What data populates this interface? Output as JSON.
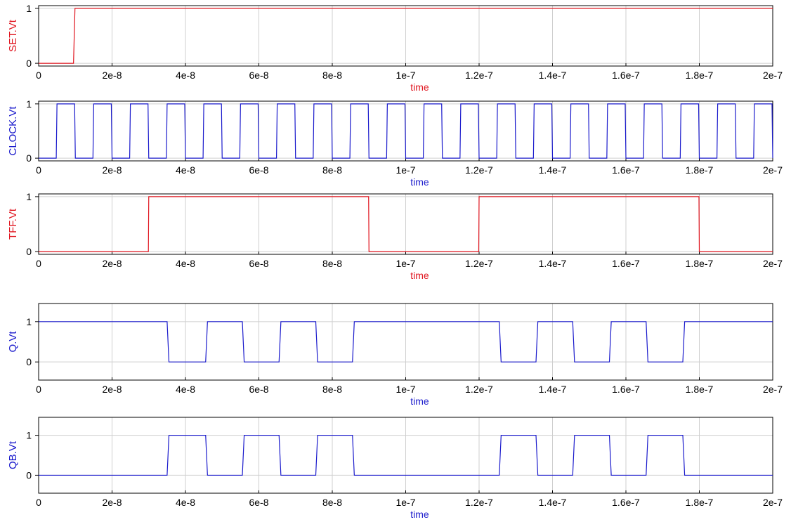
{
  "chart_data": [
    {
      "type": "line",
      "title": "",
      "xlabel": "time",
      "ylabel": "SET.Vt",
      "color": "#e0141e",
      "xlim": [
        0,
        2e-07
      ],
      "ylim": [
        -0.05,
        1.05
      ],
      "x_ticks": [
        {
          "v": 0,
          "label": "0"
        },
        {
          "v": 2e-08,
          "label": "2e-8"
        },
        {
          "v": 4e-08,
          "label": "4e-8"
        },
        {
          "v": 6e-08,
          "label": "6e-8"
        },
        {
          "v": 8e-08,
          "label": "8e-8"
        },
        {
          "v": 1e-07,
          "label": "1e-7"
        },
        {
          "v": 1.2e-07,
          "label": "1.2e-7"
        },
        {
          "v": 1.4e-07,
          "label": "1.4e-7"
        },
        {
          "v": 1.6e-07,
          "label": "1.6e-7"
        },
        {
          "v": 1.8e-07,
          "label": "1.8e-7"
        },
        {
          "v": 2e-07,
          "label": "2e-7"
        }
      ],
      "y_ticks": [
        {
          "v": 0,
          "label": "0"
        },
        {
          "v": 1,
          "label": "1"
        }
      ],
      "grid": true,
      "series": [
        {
          "x": [
            0,
            9.5e-09,
            9.9e-09,
            2e-07
          ],
          "y": [
            0,
            0,
            1,
            1
          ]
        }
      ]
    },
    {
      "type": "line",
      "title": "",
      "xlabel": "time",
      "ylabel": "CLOCK.Vt",
      "color": "#1a1acc",
      "xlim": [
        0,
        2e-07
      ],
      "ylim": [
        -0.05,
        1.05
      ],
      "x_ticks": [
        {
          "v": 0,
          "label": "0"
        },
        {
          "v": 2e-08,
          "label": "2e-8"
        },
        {
          "v": 4e-08,
          "label": "4e-8"
        },
        {
          "v": 6e-08,
          "label": "6e-8"
        },
        {
          "v": 8e-08,
          "label": "8e-8"
        },
        {
          "v": 1e-07,
          "label": "1e-7"
        },
        {
          "v": 1.2e-07,
          "label": "1.2e-7"
        },
        {
          "v": 1.4e-07,
          "label": "1.4e-7"
        },
        {
          "v": 1.6e-07,
          "label": "1.6e-7"
        },
        {
          "v": 1.8e-07,
          "label": "1.8e-7"
        },
        {
          "v": 2e-07,
          "label": "2e-7"
        }
      ],
      "y_ticks": [
        {
          "v": 0,
          "label": "0"
        },
        {
          "v": 1,
          "label": "1"
        }
      ],
      "grid": true,
      "series": [
        {
          "x": [
            0,
            4.8e-09,
            5e-09,
            9.8e-09,
            1e-08,
            1.48e-08,
            1.5e-08,
            1.98e-08,
            2e-08,
            2.48e-08,
            2.5e-08,
            2.98e-08,
            3e-08,
            3.48e-08,
            3.5e-08,
            3.98e-08,
            4e-08,
            4.48e-08,
            4.5e-08,
            4.98e-08,
            5e-08,
            5.48e-08,
            5.5e-08,
            5.98e-08,
            6e-08,
            6.48e-08,
            6.5e-08,
            6.98e-08,
            7e-08,
            7.48e-08,
            7.5e-08,
            7.98e-08,
            8e-08,
            8.48e-08,
            8.5e-08,
            8.98e-08,
            9e-08,
            9.48e-08,
            9.5e-08,
            9.98e-08,
            1e-07,
            1.048e-07,
            1.05e-07,
            1.098e-07,
            1.1e-07,
            1.148e-07,
            1.15e-07,
            1.198e-07,
            1.2e-07,
            1.248e-07,
            1.25e-07,
            1.298e-07,
            1.3e-07,
            1.348e-07,
            1.35e-07,
            1.398e-07,
            1.4e-07,
            1.448e-07,
            1.45e-07,
            1.498e-07,
            1.5e-07,
            1.548e-07,
            1.55e-07,
            1.598e-07,
            1.6e-07,
            1.648e-07,
            1.65e-07,
            1.698e-07,
            1.7e-07,
            1.748e-07,
            1.75e-07,
            1.798e-07,
            1.8e-07,
            1.848e-07,
            1.85e-07,
            1.898e-07,
            1.9e-07,
            1.948e-07,
            1.95e-07,
            1.998e-07,
            2e-07
          ],
          "y": [
            0,
            0,
            1,
            1,
            0,
            0,
            1,
            1,
            0,
            0,
            1,
            1,
            0,
            0,
            1,
            1,
            0,
            0,
            1,
            1,
            0,
            0,
            1,
            1,
            0,
            0,
            1,
            1,
            0,
            0,
            1,
            1,
            0,
            0,
            1,
            1,
            0,
            0,
            1,
            1,
            0,
            0,
            1,
            1,
            0,
            0,
            1,
            1,
            0,
            0,
            1,
            1,
            0,
            0,
            1,
            1,
            0,
            0,
            1,
            1,
            0,
            0,
            1,
            1,
            0,
            0,
            1,
            1,
            0,
            0,
            1,
            1,
            0,
            0,
            1,
            1,
            0,
            0,
            1,
            1,
            0
          ]
        }
      ]
    },
    {
      "type": "line",
      "title": "",
      "xlabel": "time",
      "ylabel": "TFF.Vt",
      "color": "#e0141e",
      "xlim": [
        0,
        2e-07
      ],
      "ylim": [
        -0.05,
        1.05
      ],
      "x_ticks": [
        {
          "v": 0,
          "label": "0"
        },
        {
          "v": 2e-08,
          "label": "2e-8"
        },
        {
          "v": 4e-08,
          "label": "4e-8"
        },
        {
          "v": 6e-08,
          "label": "6e-8"
        },
        {
          "v": 8e-08,
          "label": "8e-8"
        },
        {
          "v": 1e-07,
          "label": "1e-7"
        },
        {
          "v": 1.2e-07,
          "label": "1.2e-7"
        },
        {
          "v": 1.4e-07,
          "label": "1.4e-7"
        },
        {
          "v": 1.6e-07,
          "label": "1.6e-7"
        },
        {
          "v": 1.8e-07,
          "label": "1.8e-7"
        },
        {
          "v": 2e-07,
          "label": "2e-7"
        }
      ],
      "y_ticks": [
        {
          "v": 0,
          "label": "0"
        },
        {
          "v": 1,
          "label": "1"
        }
      ],
      "grid": true,
      "series": [
        {
          "x": [
            0,
            2.99e-08,
            3e-08,
            8.99e-08,
            9e-08,
            1.199e-07,
            1.2e-07,
            1.799e-07,
            1.8e-07,
            2e-07
          ],
          "y": [
            0,
            0,
            1,
            1,
            0,
            0,
            1,
            1,
            0,
            0
          ]
        }
      ]
    },
    {
      "type": "line",
      "title": "",
      "xlabel": "time",
      "ylabel": "Q.Vt",
      "color": "#1a1acc",
      "xlim": [
        0,
        2e-07
      ],
      "ylim": [
        -0.45,
        1.45
      ],
      "x_ticks": [
        {
          "v": 0,
          "label": "0"
        },
        {
          "v": 2e-08,
          "label": "2e-8"
        },
        {
          "v": 4e-08,
          "label": "4e-8"
        },
        {
          "v": 6e-08,
          "label": "6e-8"
        },
        {
          "v": 8e-08,
          "label": "8e-8"
        },
        {
          "v": 1e-07,
          "label": "1e-7"
        },
        {
          "v": 1.2e-07,
          "label": "1.2e-7"
        },
        {
          "v": 1.4e-07,
          "label": "1.4e-7"
        },
        {
          "v": 1.6e-07,
          "label": "1.6e-7"
        },
        {
          "v": 1.8e-07,
          "label": "1.8e-7"
        },
        {
          "v": 2e-07,
          "label": "2e-7"
        }
      ],
      "y_ticks": [
        {
          "v": 0,
          "label": "0"
        },
        {
          "v": 1,
          "label": "1"
        }
      ],
      "grid": true,
      "series": [
        {
          "x": [
            0,
            3.5e-08,
            3.55e-08,
            4.55e-08,
            4.6e-08,
            5.55e-08,
            5.6e-08,
            6.55e-08,
            6.6e-08,
            7.55e-08,
            7.6e-08,
            8.55e-08,
            8.6e-08,
            1.255e-07,
            1.26e-07,
            1.355e-07,
            1.36e-07,
            1.455e-07,
            1.46e-07,
            1.555e-07,
            1.56e-07,
            1.655e-07,
            1.66e-07,
            1.755e-07,
            1.76e-07,
            2e-07
          ],
          "y": [
            1,
            1,
            0,
            0,
            1,
            1,
            0,
            0,
            1,
            1,
            0,
            0,
            1,
            1,
            0,
            0,
            1,
            1,
            0,
            0,
            1,
            1,
            0,
            0,
            1,
            1
          ]
        }
      ]
    },
    {
      "type": "line",
      "title": "",
      "xlabel": "time",
      "ylabel": "QB.Vt",
      "color": "#1a1acc",
      "xlim": [
        0,
        2e-07
      ],
      "ylim": [
        -0.45,
        1.45
      ],
      "x_ticks": [
        {
          "v": 0,
          "label": "0"
        },
        {
          "v": 2e-08,
          "label": "2e-8"
        },
        {
          "v": 4e-08,
          "label": "4e-8"
        },
        {
          "v": 6e-08,
          "label": "6e-8"
        },
        {
          "v": 8e-08,
          "label": "8e-8"
        },
        {
          "v": 1e-07,
          "label": "1e-7"
        },
        {
          "v": 1.2e-07,
          "label": "1.2e-7"
        },
        {
          "v": 1.4e-07,
          "label": "1.4e-7"
        },
        {
          "v": 1.6e-07,
          "label": "1.6e-7"
        },
        {
          "v": 1.8e-07,
          "label": "1.8e-7"
        },
        {
          "v": 2e-07,
          "label": "2e-7"
        }
      ],
      "y_ticks": [
        {
          "v": 0,
          "label": "0"
        },
        {
          "v": 1,
          "label": "1"
        }
      ],
      "grid": true,
      "series": [
        {
          "x": [
            0,
            3.5e-08,
            3.55e-08,
            4.55e-08,
            4.6e-08,
            5.55e-08,
            5.6e-08,
            6.55e-08,
            6.6e-08,
            7.55e-08,
            7.6e-08,
            8.55e-08,
            8.6e-08,
            1.255e-07,
            1.26e-07,
            1.355e-07,
            1.36e-07,
            1.455e-07,
            1.46e-07,
            1.555e-07,
            1.56e-07,
            1.655e-07,
            1.66e-07,
            1.755e-07,
            1.76e-07,
            2e-07
          ],
          "y": [
            0,
            0,
            1,
            1,
            0,
            0,
            1,
            1,
            0,
            0,
            1,
            1,
            0,
            0,
            1,
            1,
            0,
            0,
            1,
            1,
            0,
            0,
            1,
            1,
            0,
            0
          ]
        }
      ]
    }
  ]
}
